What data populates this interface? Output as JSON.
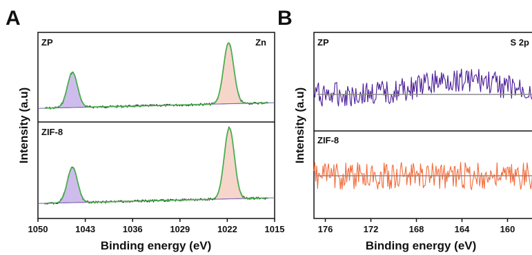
{
  "figure": {
    "panel_a_letter": "A",
    "panel_b_letter": "B"
  },
  "chart_data": [
    {
      "id": "panel-a",
      "type": "line",
      "xlabel": "Binding energy (eV)",
      "ylabel": "Intensity (a.u)",
      "xlim": [
        1050,
        1015
      ],
      "x_reversed": true,
      "xticks": [
        1050,
        1043,
        1036,
        1029,
        1022,
        1015
      ],
      "element_label": "Zn",
      "colors": {
        "raw": "#1a1a1a",
        "fit": "#4caf50",
        "peak1_fill": "#c9b6ea",
        "peak2_fill": "#f6d2c6",
        "background": "#7a5ab0"
      },
      "subplots": [
        {
          "name": "ZP",
          "peaks": [
            {
              "center": 1044.9,
              "height": 0.55
            },
            {
              "center": 1021.8,
              "height": 0.95
            }
          ]
        },
        {
          "name": "ZIF-8",
          "peaks": [
            {
              "center": 1044.9,
              "height": 0.5
            },
            {
              "center": 1021.7,
              "height": 1.0
            }
          ]
        }
      ]
    },
    {
      "id": "panel-b",
      "type": "line",
      "xlabel": "Binding energy (eV)",
      "ylabel": "Intensity (a.u)",
      "xlim": [
        177,
        157
      ],
      "x_reversed": true,
      "xticks": [
        176,
        172,
        168,
        164,
        160
      ],
      "element_label": "S 2p",
      "baseline_color": "#8a8a8a",
      "subplots": [
        {
          "name": "ZP",
          "color": "#4b1d97",
          "hump_center": 164.0
        },
        {
          "name": "ZIF-8",
          "color": "#f36b3a"
        }
      ]
    }
  ]
}
